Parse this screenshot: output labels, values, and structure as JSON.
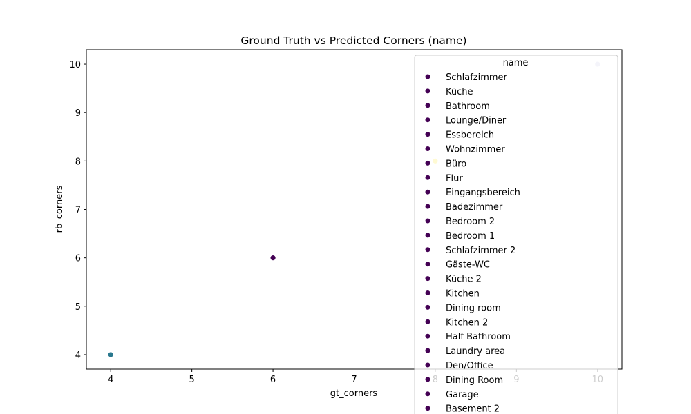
{
  "chart_data": {
    "type": "scatter",
    "title": "Ground Truth vs Predicted Corners (name)",
    "xlabel": "gt_corners",
    "ylabel": "rb_corners",
    "xlim": [
      3.7,
      10.3
    ],
    "ylim": [
      3.7,
      10.3
    ],
    "xticks": [
      4,
      5,
      6,
      7,
      8,
      9,
      10
    ],
    "yticks": [
      4,
      5,
      6,
      7,
      8,
      9,
      10
    ],
    "grid": false,
    "points": [
      {
        "x": 4,
        "y": 4,
        "color": "#2a788e"
      },
      {
        "x": 6,
        "y": 6,
        "color": "#440154"
      },
      {
        "x": 8,
        "y": 8,
        "color": "#fde725"
      },
      {
        "x": 10,
        "y": 10,
        "color": "#c6c6e4"
      }
    ],
    "legend": {
      "title": "name",
      "placement": "top-right",
      "marker_color": "#440154",
      "entries": [
        "Schlafzimmer",
        "Küche",
        "Bathroom",
        "Lounge/Diner",
        "Essbereich",
        "Wohnzimmer",
        "Büro",
        "Flur",
        "Eingangsbereich",
        "Badezimmer",
        "Bedroom 2",
        "Bedroom 1",
        "Schlafzimmer 2",
        "Gäste-WC",
        "Küche 2",
        "Kitchen",
        "Dining room",
        "Kitchen 2",
        "Half Bathroom",
        "Laundry area",
        "Den/Office",
        "Dining Room",
        "Garage",
        "Basement 2"
      ]
    }
  }
}
